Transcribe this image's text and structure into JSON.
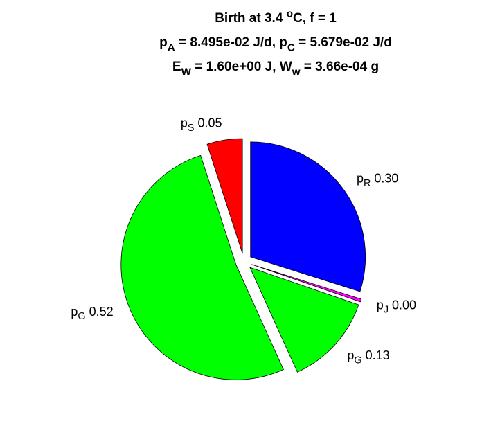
{
  "chart_data": {
    "type": "pie",
    "title": [
      [
        "Birth at 3.4 ",
        {
          "sup": "o"
        },
        "C, f = 1"
      ],
      [
        "p",
        {
          "sub": "A"
        },
        " = 8.495e-02 J/d, p",
        {
          "sub": "C"
        },
        " = 5.679e-02 J/d"
      ],
      [
        "E",
        {
          "sub": "W"
        },
        " = 1.60e+00 J, W",
        {
          "sub": "w"
        },
        " = 3.66e-04 g"
      ]
    ],
    "categories": [
      [
        "p",
        {
          "sub": "R"
        }
      ],
      [
        "p",
        {
          "sub": "J"
        }
      ],
      [
        "p",
        {
          "sub": "G"
        }
      ],
      [
        "p",
        {
          "sub": "G"
        }
      ],
      [
        "p",
        {
          "sub": "S"
        }
      ]
    ],
    "values": [
      0.3,
      0.004,
      0.13,
      0.52,
      0.05
    ],
    "value_labels": [
      "0.30",
      "0.00",
      "0.13",
      "0.52",
      "0.05"
    ],
    "colors": [
      "#0000ff",
      "#ff00ff",
      "#00ff00",
      "#00ff00",
      "#ff0000"
    ],
    "explode": true
  }
}
